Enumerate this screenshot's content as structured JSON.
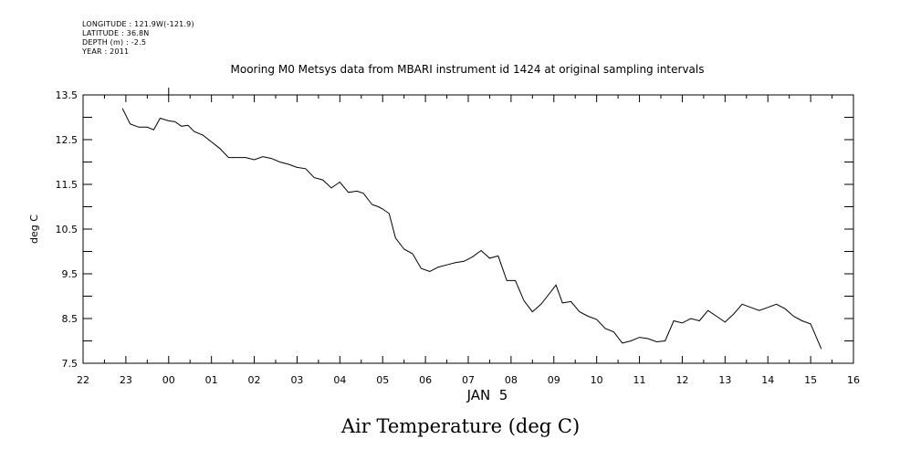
{
  "header": {
    "longitude": "LONGITUDE : 121.9W(-121.9)",
    "latitude": "LATITUDE : 36.8N",
    "depth": "DEPTH (m) : -2.5",
    "year": "YEAR : 2011"
  },
  "chart_data": {
    "type": "line",
    "title": "Mooring M0 Metsys data from MBARI instrument id 1424 at original sampling intervals",
    "bottom_title": "Air Temperature (deg C)",
    "ylabel": "deg C",
    "xlabel": "JAN  5",
    "ylim": [
      7.5,
      13.5
    ],
    "xlim": [
      22,
      40
    ],
    "y_ticks": [
      "13.5",
      "12.5",
      "11.5",
      "10.5",
      "9.5",
      "8.5",
      "7.5"
    ],
    "x_tick_labels": [
      "22",
      "23",
      "00",
      "01",
      "02",
      "03",
      "04",
      "05",
      "06",
      "07",
      "08",
      "09",
      "10",
      "11",
      "12",
      "13",
      "14",
      "15",
      "16"
    ],
    "grid": false,
    "series": [
      {
        "x": [
          22.92,
          23.1,
          23.3,
          23.5,
          23.65,
          23.8,
          24.0,
          24.15,
          24.3,
          24.45,
          24.6,
          24.8,
          25.0,
          25.2,
          25.4,
          25.6,
          25.8,
          26.0,
          26.2,
          26.4,
          26.6,
          26.8,
          27.0,
          27.2,
          27.4,
          27.6,
          27.8,
          28.0,
          28.2,
          28.4,
          28.55,
          28.75,
          28.9,
          29.0,
          29.15,
          29.3,
          29.5,
          29.7,
          29.9,
          30.1,
          30.3,
          30.5,
          30.7,
          30.9,
          31.1,
          31.3,
          31.5,
          31.7,
          31.9,
          32.1,
          32.3,
          32.5,
          32.7,
          32.85,
          33.05,
          33.2,
          33.4,
          33.6,
          33.8,
          34.0,
          34.2,
          34.4,
          34.6,
          34.8,
          35.0,
          35.2,
          35.4,
          35.6,
          35.8,
          36.0,
          36.2,
          36.4,
          36.6,
          36.8,
          37.0,
          37.2,
          37.4,
          37.6,
          37.8,
          38.0,
          38.2,
          38.4,
          38.6,
          38.8,
          39.0,
          39.25
        ],
        "y": [
          13.2,
          12.85,
          12.78,
          12.78,
          12.72,
          12.98,
          12.92,
          12.9,
          12.8,
          12.82,
          12.68,
          12.6,
          12.45,
          12.3,
          12.1,
          12.1,
          12.1,
          12.05,
          12.12,
          12.08,
          12.0,
          11.95,
          11.88,
          11.85,
          11.65,
          11.6,
          11.42,
          11.55,
          11.32,
          11.35,
          11.3,
          11.05,
          11.0,
          10.95,
          10.85,
          10.3,
          10.05,
          9.95,
          9.62,
          9.55,
          9.65,
          9.7,
          9.75,
          9.78,
          9.88,
          10.02,
          9.85,
          9.9,
          9.35,
          9.35,
          8.9,
          8.65,
          8.82,
          9.0,
          9.25,
          8.85,
          8.88,
          8.65,
          8.55,
          8.48,
          8.28,
          8.2,
          7.95,
          8.0,
          8.08,
          8.05,
          7.98,
          8.0,
          8.45,
          8.4,
          8.5,
          8.45,
          8.68,
          8.55,
          8.42,
          8.6,
          8.82,
          8.75,
          8.68,
          8.75,
          8.82,
          8.72,
          8.55,
          8.45,
          8.38,
          7.82
        ]
      }
    ]
  }
}
